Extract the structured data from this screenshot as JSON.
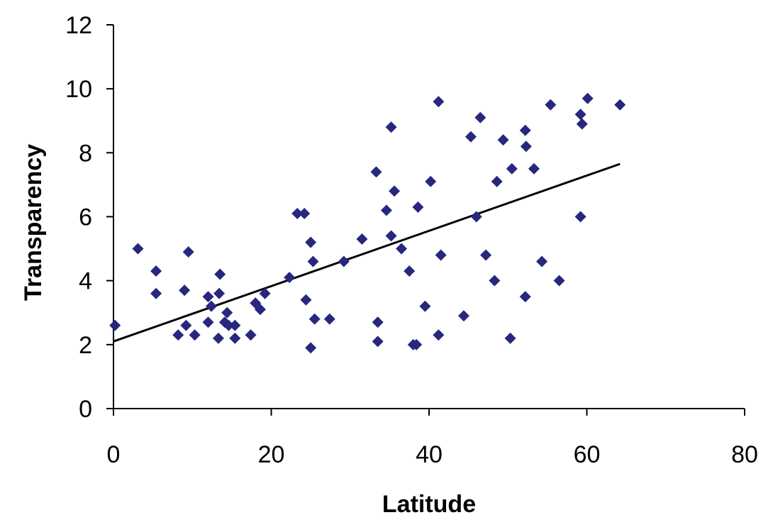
{
  "chart_data": {
    "type": "scatter",
    "title": "",
    "xlabel": "Latitude",
    "ylabel": "Transparency",
    "xlim": [
      0,
      80
    ],
    "ylim": [
      0,
      12
    ],
    "xticks": [
      0,
      20,
      40,
      60,
      80
    ],
    "yticks": [
      0,
      2,
      4,
      6,
      8,
      10,
      12
    ],
    "grid": false,
    "legend": "none",
    "marker": "diamond",
    "colors": {
      "points": "#27277f",
      "trendline": "#000000",
      "axis": "#000000"
    },
    "series": [
      {
        "points": [
          [
            0.2,
            2.6
          ],
          [
            3.1,
            5.0
          ],
          [
            5.4,
            4.3
          ],
          [
            5.4,
            3.6
          ],
          [
            8.2,
            2.3
          ],
          [
            9.0,
            3.7
          ],
          [
            9.2,
            2.6
          ],
          [
            9.5,
            4.9
          ],
          [
            10.3,
            2.3
          ],
          [
            12.0,
            3.5
          ],
          [
            12.0,
            2.7
          ],
          [
            12.4,
            3.2
          ],
          [
            13.3,
            2.2
          ],
          [
            13.4,
            3.6
          ],
          [
            13.5,
            4.2
          ],
          [
            14.1,
            2.7
          ],
          [
            14.4,
            3.0
          ],
          [
            14.6,
            2.6
          ],
          [
            15.4,
            2.6
          ],
          [
            15.4,
            2.2
          ],
          [
            17.4,
            2.3
          ],
          [
            18.0,
            3.3
          ],
          [
            18.6,
            3.1
          ],
          [
            19.2,
            3.6
          ],
          [
            22.3,
            4.1
          ],
          [
            23.3,
            6.1
          ],
          [
            24.2,
            6.1
          ],
          [
            24.4,
            3.4
          ],
          [
            25.0,
            5.2
          ],
          [
            25.0,
            1.9
          ],
          [
            25.3,
            4.6
          ],
          [
            25.5,
            2.8
          ],
          [
            27.4,
            2.8
          ],
          [
            29.2,
            4.6
          ],
          [
            31.5,
            5.3
          ],
          [
            33.3,
            7.4
          ],
          [
            33.5,
            2.7
          ],
          [
            33.5,
            2.1
          ],
          [
            34.6,
            6.2
          ],
          [
            35.2,
            8.8
          ],
          [
            35.2,
            5.4
          ],
          [
            35.6,
            6.8
          ],
          [
            36.5,
            5.0
          ],
          [
            37.5,
            4.3
          ],
          [
            38.0,
            2.0
          ],
          [
            38.4,
            2.0
          ],
          [
            38.6,
            6.3
          ],
          [
            39.5,
            3.2
          ],
          [
            40.2,
            7.1
          ],
          [
            41.2,
            9.6
          ],
          [
            41.2,
            2.3
          ],
          [
            41.5,
            4.8
          ],
          [
            44.4,
            2.9
          ],
          [
            45.3,
            8.5
          ],
          [
            46.0,
            6.0
          ],
          [
            46.5,
            9.1
          ],
          [
            47.2,
            4.8
          ],
          [
            48.3,
            4.0
          ],
          [
            48.6,
            7.1
          ],
          [
            49.4,
            8.4
          ],
          [
            50.3,
            2.2
          ],
          [
            50.5,
            7.5
          ],
          [
            52.2,
            8.7
          ],
          [
            52.3,
            8.2
          ],
          [
            52.2,
            3.5
          ],
          [
            53.3,
            7.5
          ],
          [
            54.3,
            4.6
          ],
          [
            55.4,
            9.5
          ],
          [
            56.5,
            4.0
          ],
          [
            59.2,
            9.2
          ],
          [
            59.4,
            8.9
          ],
          [
            59.2,
            6.0
          ],
          [
            60.1,
            9.7
          ],
          [
            64.2,
            9.5
          ]
        ]
      }
    ],
    "trendline": {
      "x": [
        0,
        64.2
      ],
      "y": [
        2.1,
        7.65
      ]
    }
  }
}
